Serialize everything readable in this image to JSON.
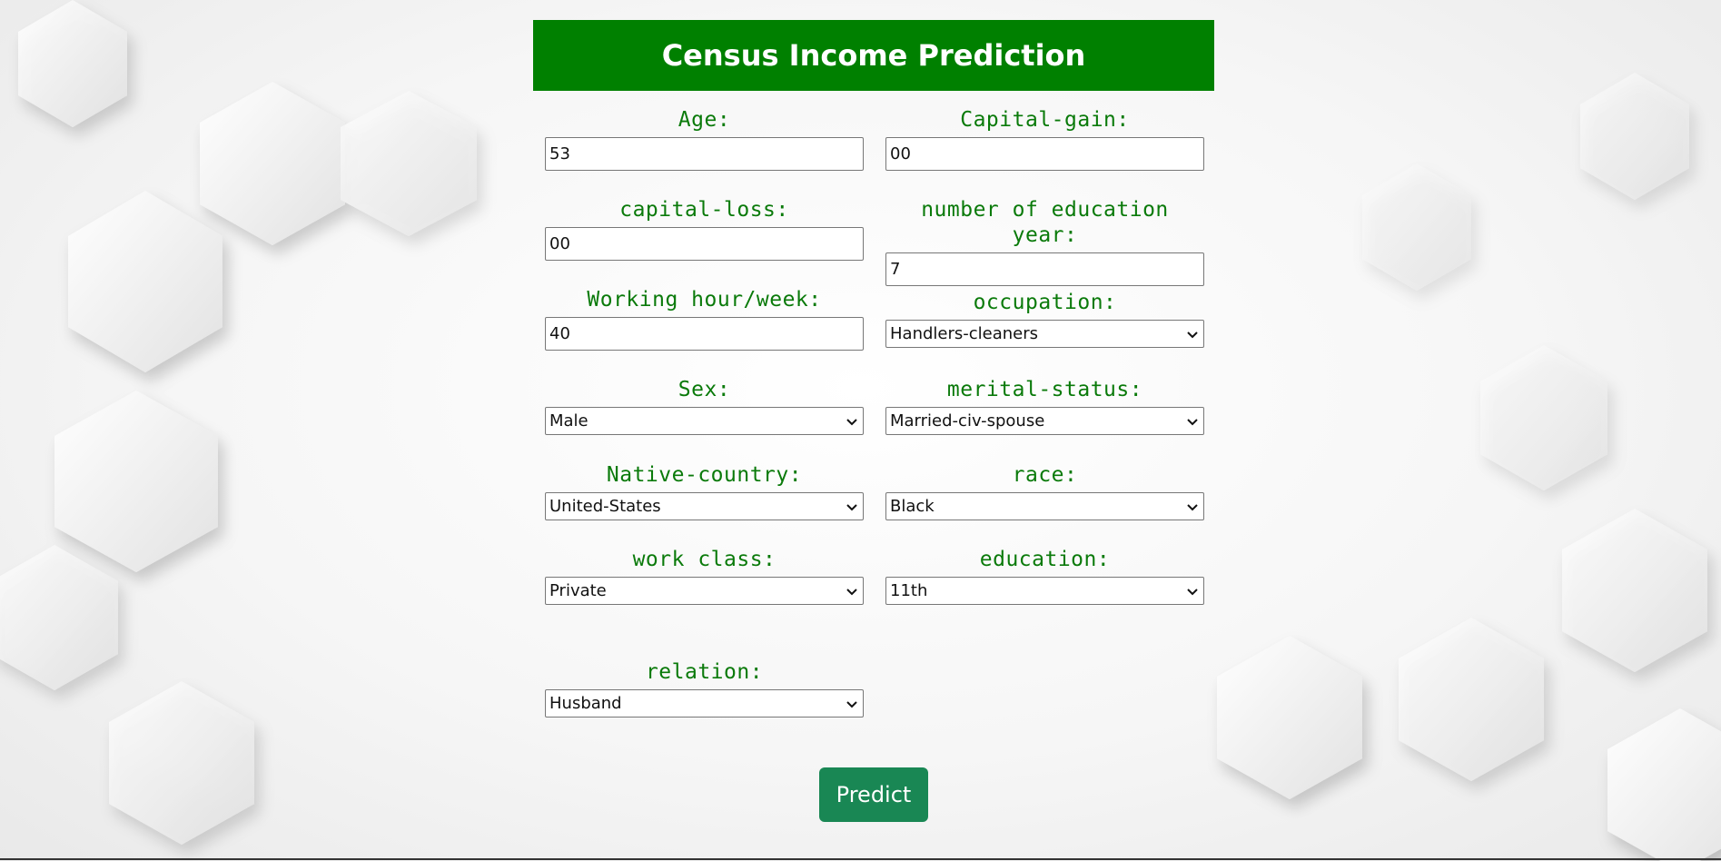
{
  "title": "Census Income Prediction",
  "fields": {
    "age": {
      "label": "Age:",
      "value": "53"
    },
    "capital_gain": {
      "label": "Capital-gain:",
      "value": "00"
    },
    "capital_loss": {
      "label": "capital-loss:",
      "value": "00"
    },
    "education_years": {
      "label": "number of education year:",
      "value": "7"
    },
    "hours_per_week": {
      "label": "Working hour/week:",
      "value": "40"
    },
    "occupation": {
      "label": "occupation:",
      "value": "Handlers-cleaners"
    },
    "sex": {
      "label": "Sex:",
      "value": "Male"
    },
    "marital_status": {
      "label": "merital-status:",
      "value": "Married-civ-spouse"
    },
    "native_country": {
      "label": "Native-country:",
      "value": "United-States"
    },
    "race": {
      "label": "race:",
      "value": "Black"
    },
    "work_class": {
      "label": "work class:",
      "value": "Private"
    },
    "education": {
      "label": "education:",
      "value": "11th"
    },
    "relation": {
      "label": "relation:",
      "value": "Husband"
    }
  },
  "predict_label": "Predict",
  "colors": {
    "banner": "#008000",
    "label_text": "#0a7a0a",
    "button": "#198754"
  },
  "icons": {
    "dropdown": "chevron-down-icon"
  }
}
